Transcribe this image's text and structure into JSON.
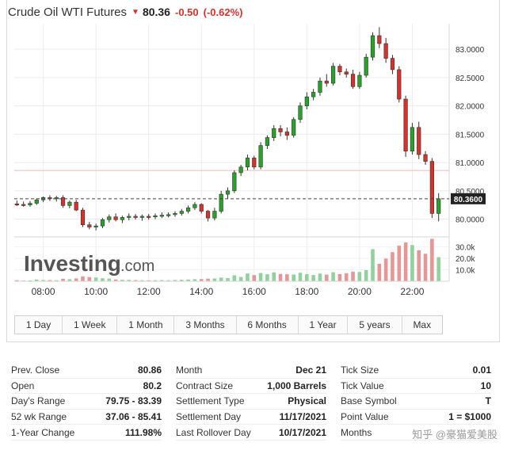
{
  "header": {
    "title": "Crude Oil WTI Futures",
    "price": "80.36",
    "change": "-0.50",
    "change_pct": "(-0.62%)",
    "down_color": "#d9302c"
  },
  "logo": {
    "main": "Investing",
    "suffix": ".com"
  },
  "ranges": [
    "1 Day",
    "1 Week",
    "1 Month",
    "3 Months",
    "6 Months",
    "1 Year",
    "5 years",
    "Max"
  ],
  "chart_data": {
    "type": "candlestick",
    "title": "",
    "x_tick_labels": [
      "08:00",
      "10:00",
      "12:00",
      "14:00",
      "16:00",
      "18:00",
      "20:00",
      "22:00"
    ],
    "y_tick_labels": [
      "83.0000",
      "82.5000",
      "82.0000",
      "81.5000",
      "81.0000",
      "80.5000",
      "80.0000"
    ],
    "volume_tick_labels": [
      "30.0k",
      "20.0k",
      "10.0k"
    ],
    "ylim": [
      79.7,
      83.45
    ],
    "volume_ylim": [
      0,
      38000
    ],
    "last_price_label": "80.3600",
    "last_price": 80.36,
    "prev_close": 80.86,
    "up_color": "#27a327",
    "down_color": "#d9302c",
    "x_range": [
      6.9,
      23.4
    ],
    "candles": [
      {
        "t": 7.0,
        "o": 80.27,
        "h": 80.33,
        "l": 80.23,
        "c": 80.26
      },
      {
        "t": 7.25,
        "o": 80.26,
        "h": 80.31,
        "l": 80.22,
        "c": 80.25
      },
      {
        "t": 7.5,
        "o": 80.25,
        "h": 80.32,
        "l": 80.22,
        "c": 80.28
      },
      {
        "t": 7.75,
        "o": 80.28,
        "h": 80.37,
        "l": 80.25,
        "c": 80.34
      },
      {
        "t": 8.0,
        "o": 80.34,
        "h": 80.4,
        "l": 80.3,
        "c": 80.38
      },
      {
        "t": 8.25,
        "o": 80.38,
        "h": 80.42,
        "l": 80.32,
        "c": 80.36
      },
      {
        "t": 8.5,
        "o": 80.36,
        "h": 80.41,
        "l": 80.31,
        "c": 80.38
      },
      {
        "t": 8.75,
        "o": 80.38,
        "h": 80.42,
        "l": 80.2,
        "c": 80.24
      },
      {
        "t": 9.0,
        "o": 80.24,
        "h": 80.33,
        "l": 80.19,
        "c": 80.3
      },
      {
        "t": 9.25,
        "o": 80.3,
        "h": 80.34,
        "l": 80.14,
        "c": 80.16
      },
      {
        "t": 9.5,
        "o": 80.16,
        "h": 80.2,
        "l": 79.86,
        "c": 79.9
      },
      {
        "t": 9.75,
        "o": 79.9,
        "h": 79.95,
        "l": 79.82,
        "c": 79.86
      },
      {
        "t": 10.0,
        "o": 79.86,
        "h": 79.92,
        "l": 79.8,
        "c": 79.88
      },
      {
        "t": 10.25,
        "o": 79.88,
        "h": 80.02,
        "l": 79.84,
        "c": 79.99
      },
      {
        "t": 10.5,
        "o": 79.99,
        "h": 80.08,
        "l": 79.94,
        "c": 80.04
      },
      {
        "t": 10.75,
        "o": 80.04,
        "h": 80.1,
        "l": 79.96,
        "c": 79.99
      },
      {
        "t": 11.0,
        "o": 79.99,
        "h": 80.06,
        "l": 79.93,
        "c": 80.03
      },
      {
        "t": 11.25,
        "o": 80.03,
        "h": 80.1,
        "l": 79.98,
        "c": 80.05
      },
      {
        "t": 11.5,
        "o": 80.05,
        "h": 80.09,
        "l": 79.99,
        "c": 80.03
      },
      {
        "t": 11.75,
        "o": 80.03,
        "h": 80.08,
        "l": 79.97,
        "c": 80.05
      },
      {
        "t": 12.0,
        "o": 80.05,
        "h": 80.09,
        "l": 79.99,
        "c": 80.04
      },
      {
        "t": 12.25,
        "o": 80.04,
        "h": 80.1,
        "l": 80.0,
        "c": 80.06
      },
      {
        "t": 12.5,
        "o": 80.06,
        "h": 80.12,
        "l": 80.02,
        "c": 80.07
      },
      {
        "t": 12.75,
        "o": 80.07,
        "h": 80.12,
        "l": 80.03,
        "c": 80.08
      },
      {
        "t": 13.0,
        "o": 80.08,
        "h": 80.14,
        "l": 80.04,
        "c": 80.1
      },
      {
        "t": 13.25,
        "o": 80.1,
        "h": 80.18,
        "l": 80.06,
        "c": 80.14
      },
      {
        "t": 13.5,
        "o": 80.14,
        "h": 80.24,
        "l": 80.1,
        "c": 80.2
      },
      {
        "t": 13.75,
        "o": 80.2,
        "h": 80.3,
        "l": 80.16,
        "c": 80.26
      },
      {
        "t": 14.0,
        "o": 80.26,
        "h": 80.28,
        "l": 80.1,
        "c": 80.14
      },
      {
        "t": 14.25,
        "o": 80.14,
        "h": 80.16,
        "l": 79.96,
        "c": 80.02
      },
      {
        "t": 14.5,
        "o": 80.02,
        "h": 80.2,
        "l": 79.98,
        "c": 80.14
      },
      {
        "t": 14.75,
        "o": 80.14,
        "h": 80.5,
        "l": 80.1,
        "c": 80.44
      },
      {
        "t": 15.0,
        "o": 80.44,
        "h": 80.56,
        "l": 80.36,
        "c": 80.5
      },
      {
        "t": 15.25,
        "o": 80.5,
        "h": 80.86,
        "l": 80.46,
        "c": 80.82
      },
      {
        "t": 15.5,
        "o": 80.82,
        "h": 80.96,
        "l": 80.76,
        "c": 80.92
      },
      {
        "t": 15.75,
        "o": 80.92,
        "h": 81.14,
        "l": 80.86,
        "c": 81.08
      },
      {
        "t": 16.0,
        "o": 81.08,
        "h": 81.12,
        "l": 80.88,
        "c": 80.92
      },
      {
        "t": 16.25,
        "o": 80.92,
        "h": 81.36,
        "l": 80.88,
        "c": 81.3
      },
      {
        "t": 16.5,
        "o": 81.3,
        "h": 81.48,
        "l": 81.24,
        "c": 81.44
      },
      {
        "t": 16.75,
        "o": 81.44,
        "h": 81.66,
        "l": 81.38,
        "c": 81.6
      },
      {
        "t": 17.0,
        "o": 81.6,
        "h": 81.66,
        "l": 81.46,
        "c": 81.54
      },
      {
        "t": 17.25,
        "o": 81.54,
        "h": 81.62,
        "l": 81.4,
        "c": 81.48
      },
      {
        "t": 17.5,
        "o": 81.48,
        "h": 81.8,
        "l": 81.44,
        "c": 81.76
      },
      {
        "t": 17.75,
        "o": 81.76,
        "h": 82.06,
        "l": 81.7,
        "c": 82.0
      },
      {
        "t": 18.0,
        "o": 82.0,
        "h": 82.24,
        "l": 81.94,
        "c": 82.16
      },
      {
        "t": 18.25,
        "o": 82.16,
        "h": 82.3,
        "l": 82.1,
        "c": 82.24
      },
      {
        "t": 18.5,
        "o": 82.24,
        "h": 82.5,
        "l": 82.18,
        "c": 82.44
      },
      {
        "t": 18.75,
        "o": 82.44,
        "h": 82.56,
        "l": 82.34,
        "c": 82.4
      },
      {
        "t": 19.0,
        "o": 82.4,
        "h": 82.76,
        "l": 82.36,
        "c": 82.7
      },
      {
        "t": 19.25,
        "o": 82.7,
        "h": 82.74,
        "l": 82.54,
        "c": 82.6
      },
      {
        "t": 19.5,
        "o": 82.6,
        "h": 82.66,
        "l": 82.5,
        "c": 82.56
      },
      {
        "t": 19.75,
        "o": 82.56,
        "h": 82.64,
        "l": 82.3,
        "c": 82.34
      },
      {
        "t": 20.0,
        "o": 82.34,
        "h": 82.6,
        "l": 82.3,
        "c": 82.54
      },
      {
        "t": 20.25,
        "o": 82.54,
        "h": 82.92,
        "l": 82.5,
        "c": 82.86
      },
      {
        "t": 20.5,
        "o": 82.86,
        "h": 83.3,
        "l": 82.8,
        "c": 83.24
      },
      {
        "t": 20.75,
        "o": 83.24,
        "h": 83.39,
        "l": 83.02,
        "c": 83.1
      },
      {
        "t": 21.0,
        "o": 83.1,
        "h": 83.2,
        "l": 82.76,
        "c": 82.84
      },
      {
        "t": 21.25,
        "o": 82.84,
        "h": 82.9,
        "l": 82.56,
        "c": 82.64
      },
      {
        "t": 21.5,
        "o": 82.64,
        "h": 82.7,
        "l": 82.06,
        "c": 82.12
      },
      {
        "t": 21.75,
        "o": 82.12,
        "h": 82.18,
        "l": 81.1,
        "c": 81.2
      },
      {
        "t": 22.0,
        "o": 81.2,
        "h": 81.7,
        "l": 81.14,
        "c": 81.62
      },
      {
        "t": 22.25,
        "o": 81.62,
        "h": 81.72,
        "l": 81.06,
        "c": 81.14
      },
      {
        "t": 22.5,
        "o": 81.14,
        "h": 81.2,
        "l": 80.96,
        "c": 81.02
      },
      {
        "t": 22.75,
        "o": 81.02,
        "h": 81.08,
        "l": 80.02,
        "c": 80.1
      },
      {
        "t": 23.0,
        "o": 80.1,
        "h": 80.46,
        "l": 79.96,
        "c": 80.36
      }
    ],
    "volume": [
      {
        "t": 7.0,
        "v": 900,
        "up": false
      },
      {
        "t": 7.25,
        "v": 600,
        "up": false
      },
      {
        "t": 7.5,
        "v": 800,
        "up": true
      },
      {
        "t": 7.75,
        "v": 1500,
        "up": true
      },
      {
        "t": 8.0,
        "v": 1100,
        "up": true
      },
      {
        "t": 8.25,
        "v": 1000,
        "up": false
      },
      {
        "t": 8.5,
        "v": 900,
        "up": true
      },
      {
        "t": 8.75,
        "v": 2200,
        "up": false
      },
      {
        "t": 9.0,
        "v": 1800,
        "up": true
      },
      {
        "t": 9.25,
        "v": 2500,
        "up": false
      },
      {
        "t": 9.5,
        "v": 4200,
        "up": false
      },
      {
        "t": 9.75,
        "v": 3600,
        "up": false
      },
      {
        "t": 10.0,
        "v": 3300,
        "up": true
      },
      {
        "t": 10.25,
        "v": 2600,
        "up": true
      },
      {
        "t": 10.5,
        "v": 2400,
        "up": true
      },
      {
        "t": 10.75,
        "v": 1600,
        "up": false
      },
      {
        "t": 11.0,
        "v": 1300,
        "up": true
      },
      {
        "t": 11.25,
        "v": 1200,
        "up": true
      },
      {
        "t": 11.5,
        "v": 1000,
        "up": false
      },
      {
        "t": 11.75,
        "v": 900,
        "up": true
      },
      {
        "t": 12.0,
        "v": 800,
        "up": false
      },
      {
        "t": 12.25,
        "v": 900,
        "up": true
      },
      {
        "t": 12.5,
        "v": 1000,
        "up": true
      },
      {
        "t": 12.75,
        "v": 900,
        "up": true
      },
      {
        "t": 13.0,
        "v": 1100,
        "up": true
      },
      {
        "t": 13.25,
        "v": 1300,
        "up": true
      },
      {
        "t": 13.5,
        "v": 1500,
        "up": true
      },
      {
        "t": 13.75,
        "v": 1800,
        "up": true
      },
      {
        "t": 14.0,
        "v": 1900,
        "up": false
      },
      {
        "t": 14.25,
        "v": 2300,
        "up": false
      },
      {
        "t": 14.5,
        "v": 2400,
        "up": true
      },
      {
        "t": 14.75,
        "v": 3200,
        "up": true
      },
      {
        "t": 15.0,
        "v": 2800,
        "up": true
      },
      {
        "t": 15.25,
        "v": 5200,
        "up": true
      },
      {
        "t": 15.5,
        "v": 3800,
        "up": true
      },
      {
        "t": 15.75,
        "v": 6800,
        "up": true
      },
      {
        "t": 16.0,
        "v": 5400,
        "up": false
      },
      {
        "t": 16.25,
        "v": 7200,
        "up": true
      },
      {
        "t": 16.5,
        "v": 6100,
        "up": true
      },
      {
        "t": 16.75,
        "v": 7800,
        "up": true
      },
      {
        "t": 17.0,
        "v": 6400,
        "up": false
      },
      {
        "t": 17.25,
        "v": 6100,
        "up": false
      },
      {
        "t": 17.5,
        "v": 5900,
        "up": true
      },
      {
        "t": 17.75,
        "v": 7400,
        "up": true
      },
      {
        "t": 18.0,
        "v": 6200,
        "up": true
      },
      {
        "t": 18.25,
        "v": 5400,
        "up": true
      },
      {
        "t": 18.5,
        "v": 6700,
        "up": true
      },
      {
        "t": 18.75,
        "v": 5800,
        "up": false
      },
      {
        "t": 19.0,
        "v": 7900,
        "up": true
      },
      {
        "t": 19.25,
        "v": 6300,
        "up": false
      },
      {
        "t": 19.5,
        "v": 6900,
        "up": false
      },
      {
        "t": 19.75,
        "v": 8400,
        "up": false
      },
      {
        "t": 20.0,
        "v": 8100,
        "up": true
      },
      {
        "t": 20.25,
        "v": 9700,
        "up": true
      },
      {
        "t": 20.5,
        "v": 28000,
        "up": true
      },
      {
        "t": 20.75,
        "v": 15200,
        "up": false
      },
      {
        "t": 21.0,
        "v": 19800,
        "up": false
      },
      {
        "t": 21.25,
        "v": 25400,
        "up": false
      },
      {
        "t": 21.5,
        "v": 31000,
        "up": false
      },
      {
        "t": 21.75,
        "v": 33800,
        "up": false
      },
      {
        "t": 22.0,
        "v": 31600,
        "up": true
      },
      {
        "t": 22.25,
        "v": 27000,
        "up": false
      },
      {
        "t": 22.5,
        "v": 24000,
        "up": false
      },
      {
        "t": 22.75,
        "v": 37000,
        "up": false
      },
      {
        "t": 23.0,
        "v": 21000,
        "up": true
      }
    ]
  },
  "stats": {
    "col1": [
      {
        "label": "Prev. Close",
        "value": "80.86"
      },
      {
        "label": "Open",
        "value": "80.2"
      },
      {
        "label": "Day's Range",
        "value": "79.75 - 83.39"
      },
      {
        "label": "52 wk Range",
        "value": "37.06 - 85.41"
      },
      {
        "label": "1-Year Change",
        "value": "111.98%"
      }
    ],
    "col2": [
      {
        "label": "Month",
        "value": "Dec 21"
      },
      {
        "label": "Contract Size",
        "value": "1,000 Barrels"
      },
      {
        "label": "Settlement Type",
        "value": "Physical"
      },
      {
        "label": "Settlement Day",
        "value": "11/17/2021"
      },
      {
        "label": "Last Rollover Day",
        "value": "10/17/2021"
      }
    ],
    "col3": [
      {
        "label": "Tick Size",
        "value": "0.01"
      },
      {
        "label": "Tick Value",
        "value": "10"
      },
      {
        "label": "Base Symbol",
        "value": "T"
      },
      {
        "label": "Point Value",
        "value": "1 = $1000"
      },
      {
        "label": "Months",
        "value": ""
      }
    ]
  },
  "watermark": "知乎 @豪猫爱美股"
}
